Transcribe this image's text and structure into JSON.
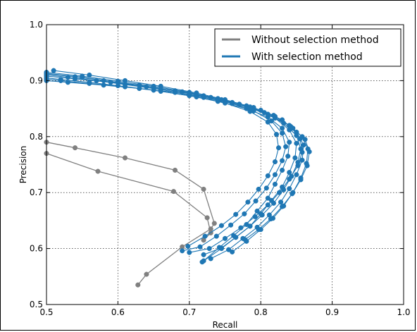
{
  "chart_data": {
    "type": "line",
    "xlabel": "Recall",
    "ylabel": "Precision",
    "xlim": [
      0.5,
      1.0
    ],
    "ylim": [
      0.5,
      1.0
    ],
    "x_ticks": [
      0.5,
      0.6,
      0.7,
      0.8,
      0.9,
      1.0
    ],
    "y_ticks": [
      0.5,
      0.6,
      0.7,
      0.8,
      0.9,
      1.0
    ],
    "x_tick_labels": [
      "0.5",
      "0.6",
      "0.7",
      "0.8",
      "0.9",
      "1.0"
    ],
    "y_tick_labels": [
      "0.5",
      "0.6",
      "0.7",
      "0.8",
      "0.9",
      "1.0"
    ],
    "grid": true,
    "legend_position": "top-right",
    "legend": [
      {
        "label": "Without selection method",
        "color": "#808080"
      },
      {
        "label": "With selection method",
        "color": "#1f77b4"
      }
    ],
    "series": [
      {
        "group": "without",
        "color": "#808080",
        "x": [
          0.5,
          0.54,
          0.61,
          0.68,
          0.72,
          0.735,
          0.73,
          0.69,
          0.64,
          0.628
        ],
        "y": [
          0.79,
          0.78,
          0.762,
          0.74,
          0.706,
          0.645,
          0.635,
          0.603,
          0.554,
          0.535
        ]
      },
      {
        "group": "without",
        "color": "#808080",
        "x": [
          0.5,
          0.572,
          0.678,
          0.725,
          0.73,
          0.72
        ],
        "y": [
          0.77,
          0.738,
          0.702,
          0.655,
          0.628,
          0.615
        ]
      },
      {
        "group": "with",
        "color": "#1f77b4",
        "x": [
          0.5,
          0.52,
          0.56,
          0.6,
          0.65,
          0.7,
          0.74,
          0.78,
          0.81,
          0.83,
          0.84,
          0.838,
          0.83,
          0.82,
          0.81,
          0.795,
          0.78,
          0.762,
          0.742,
          0.718
        ],
        "y": [
          0.905,
          0.902,
          0.897,
          0.891,
          0.883,
          0.873,
          0.863,
          0.85,
          0.835,
          0.815,
          0.79,
          0.765,
          0.74,
          0.715,
          0.69,
          0.667,
          0.643,
          0.623,
          0.602,
          0.576
        ]
      },
      {
        "group": "with",
        "color": "#1f77b4",
        "x": [
          0.5,
          0.53,
          0.57,
          0.61,
          0.66,
          0.71,
          0.75,
          0.79,
          0.82,
          0.84,
          0.85,
          0.848,
          0.84,
          0.83,
          0.815,
          0.8,
          0.785,
          0.765,
          0.745,
          0.72
        ],
        "y": [
          0.91,
          0.906,
          0.9,
          0.893,
          0.884,
          0.873,
          0.863,
          0.849,
          0.833,
          0.812,
          0.788,
          0.762,
          0.736,
          0.71,
          0.686,
          0.662,
          0.64,
          0.62,
          0.6,
          0.578
        ]
      },
      {
        "group": "with",
        "color": "#1f77b4",
        "x": [
          0.5,
          0.54,
          0.58,
          0.63,
          0.68,
          0.72,
          0.76,
          0.8,
          0.83,
          0.85,
          0.86,
          0.858,
          0.85,
          0.84,
          0.828,
          0.812,
          0.795,
          0.775,
          0.755,
          0.73
        ],
        "y": [
          0.912,
          0.907,
          0.9,
          0.892,
          0.882,
          0.873,
          0.861,
          0.847,
          0.83,
          0.808,
          0.785,
          0.758,
          0.732,
          0.707,
          0.683,
          0.66,
          0.638,
          0.618,
          0.598,
          0.582
        ]
      },
      {
        "group": "with",
        "color": "#1f77b4",
        "x": [
          0.5,
          0.55,
          0.6,
          0.65,
          0.7,
          0.74,
          0.78,
          0.81,
          0.84,
          0.858,
          0.866,
          0.864,
          0.856,
          0.845,
          0.832,
          0.817,
          0.8,
          0.78,
          0.76
        ],
        "y": [
          0.915,
          0.908,
          0.899,
          0.89,
          0.879,
          0.868,
          0.855,
          0.84,
          0.82,
          0.8,
          0.778,
          0.752,
          0.726,
          0.7,
          0.676,
          0.654,
          0.634,
          0.613,
          0.594
        ]
      },
      {
        "group": "with",
        "color": "#1f77b4",
        "x": [
          0.51,
          0.56,
          0.61,
          0.66,
          0.71,
          0.75,
          0.79,
          0.82,
          0.845,
          0.862,
          0.868,
          0.865,
          0.856,
          0.844,
          0.83,
          0.814,
          0.797,
          0.778
        ],
        "y": [
          0.918,
          0.91,
          0.9,
          0.89,
          0.878,
          0.866,
          0.852,
          0.836,
          0.815,
          0.795,
          0.773,
          0.748,
          0.723,
          0.698,
          0.675,
          0.653,
          0.634,
          0.616
        ]
      },
      {
        "group": "with",
        "color": "#1f77b4",
        "x": [
          0.5,
          0.53,
          0.58,
          0.63,
          0.68,
          0.72,
          0.76,
          0.79,
          0.815,
          0.83,
          0.835,
          0.83,
          0.82,
          0.808,
          0.793,
          0.777,
          0.758,
          0.738,
          0.715,
          0.69
        ],
        "y": [
          0.9,
          0.897,
          0.892,
          0.886,
          0.879,
          0.87,
          0.859,
          0.846,
          0.828,
          0.806,
          0.782,
          0.757,
          0.732,
          0.708,
          0.685,
          0.662,
          0.642,
          0.622,
          0.603,
          0.596
        ]
      },
      {
        "group": "with",
        "color": "#1f77b4",
        "x": [
          0.5,
          0.52,
          0.56,
          0.61,
          0.66,
          0.71,
          0.75,
          0.785,
          0.81,
          0.822,
          0.825,
          0.82,
          0.81,
          0.797,
          0.782,
          0.765,
          0.745,
          0.722,
          0.698
        ],
        "y": [
          0.903,
          0.9,
          0.895,
          0.889,
          0.881,
          0.871,
          0.86,
          0.845,
          0.826,
          0.804,
          0.78,
          0.755,
          0.73,
          0.706,
          0.683,
          0.661,
          0.641,
          0.622,
          0.604
        ]
      },
      {
        "group": "with",
        "color": "#1f77b4",
        "x": [
          0.5,
          0.54,
          0.59,
          0.64,
          0.69,
          0.73,
          0.77,
          0.805,
          0.832,
          0.85,
          0.856,
          0.852,
          0.843,
          0.832,
          0.818,
          0.802,
          0.785,
          0.765,
          0.745,
          0.72
        ],
        "y": [
          0.908,
          0.903,
          0.897,
          0.889,
          0.88,
          0.87,
          0.858,
          0.843,
          0.824,
          0.802,
          0.778,
          0.754,
          0.729,
          0.705,
          0.681,
          0.66,
          0.64,
          0.62,
          0.601,
          0.589
        ]
      },
      {
        "group": "with",
        "color": "#1f77b4",
        "x": [
          0.5,
          0.55,
          0.6,
          0.65,
          0.7,
          0.745,
          0.785,
          0.818,
          0.842,
          0.855,
          0.858,
          0.852,
          0.84,
          0.826,
          0.81,
          0.792,
          0.772,
          0.75,
          0.728,
          0.7
        ],
        "y": [
          0.913,
          0.906,
          0.897,
          0.888,
          0.877,
          0.866,
          0.853,
          0.838,
          0.818,
          0.796,
          0.772,
          0.748,
          0.724,
          0.7,
          0.678,
          0.657,
          0.637,
          0.618,
          0.6,
          0.593
        ]
      }
    ]
  }
}
